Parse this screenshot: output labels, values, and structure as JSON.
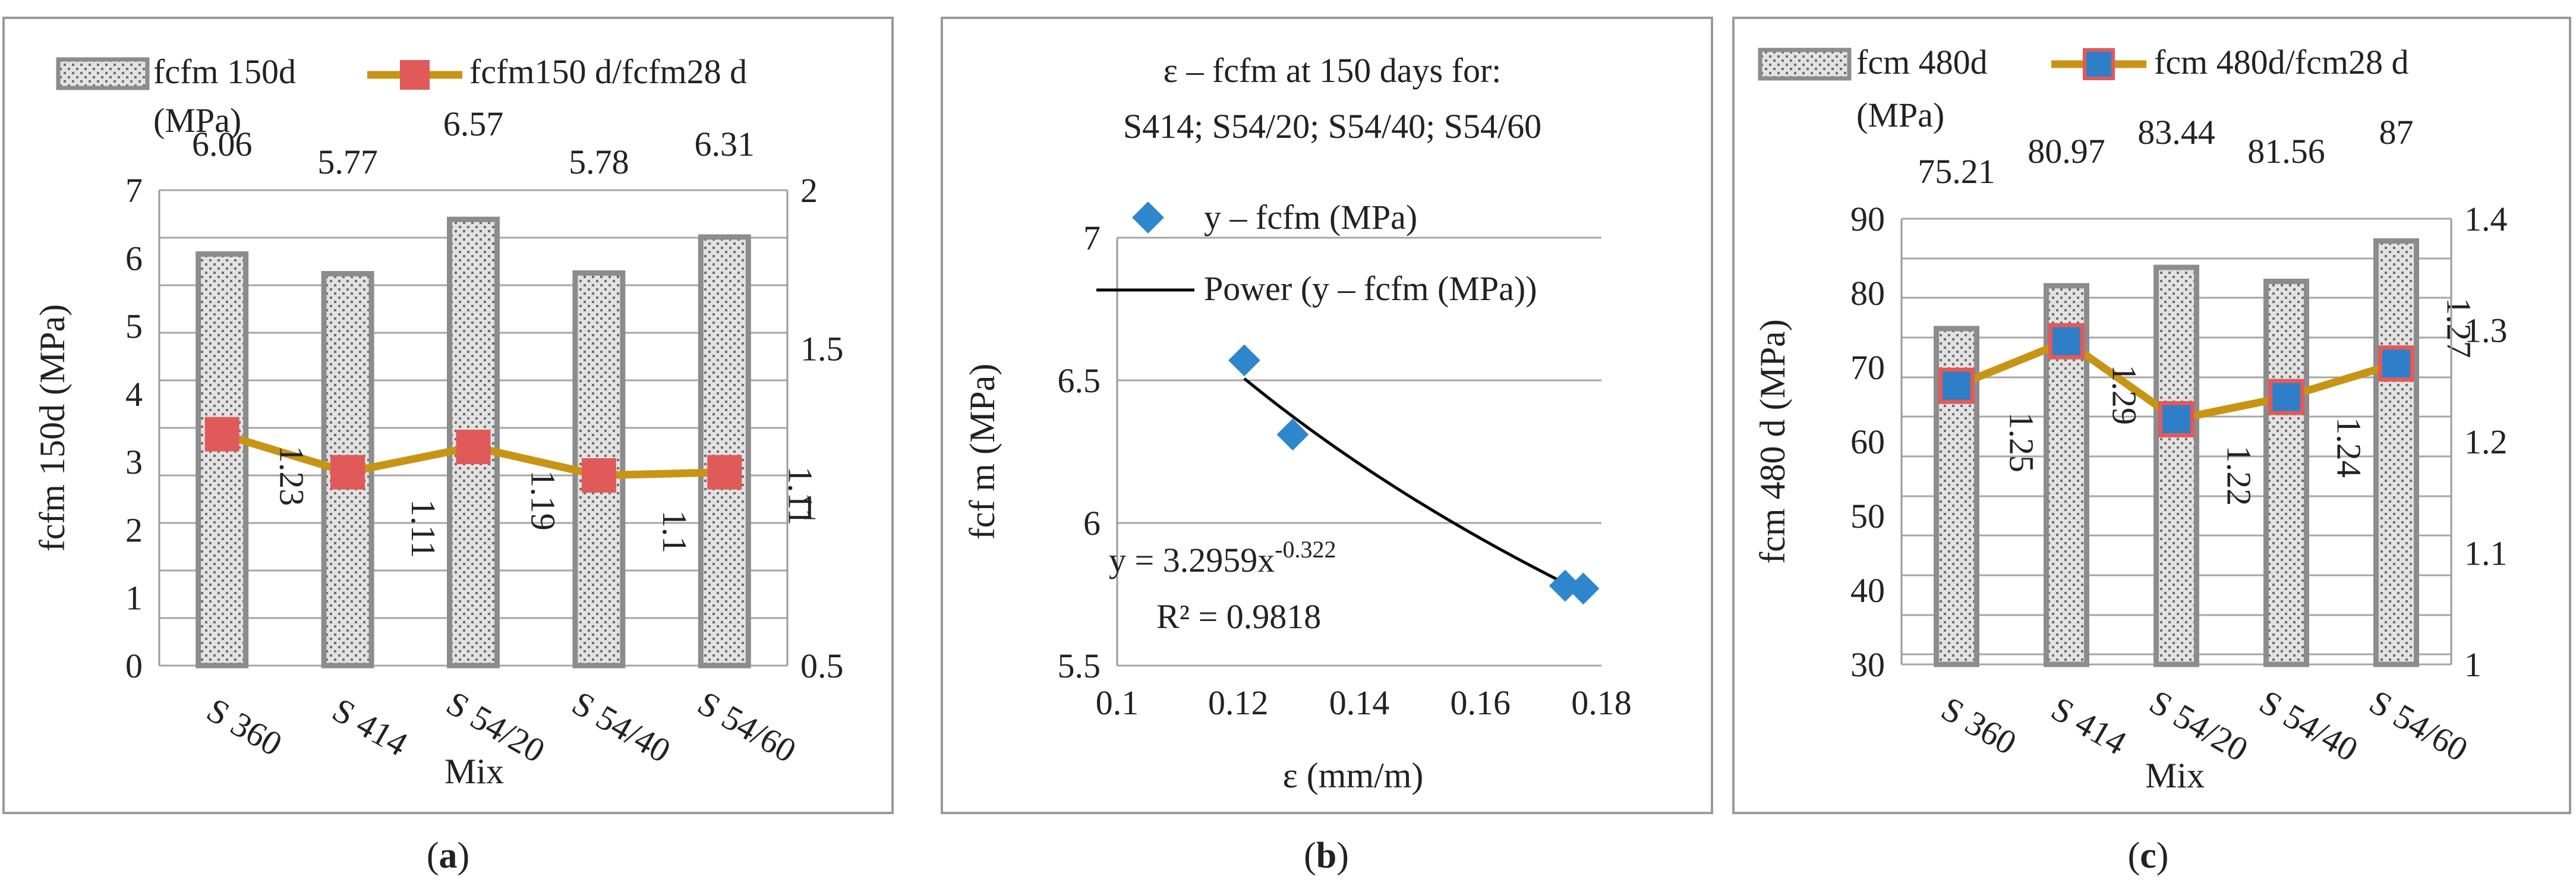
{
  "colors": {
    "panel_border": "#9a9a9a",
    "bar_outline": "#8c8c8c",
    "bar_pattern_bg": "#e2e2e2",
    "bar_pattern_dot": "#6e6e6e",
    "line": "#c89414",
    "marker_a": "#e05a5a",
    "marker_c": "#2f7fc8",
    "marker_c_edge": "#e05a5a",
    "scatter": "#2e86cc",
    "trend": "#000000",
    "grid": "#a6a6a6"
  },
  "chart_data": [
    {
      "type": "bar+line",
      "panel_label": "(a)",
      "panel_letter": "a",
      "categories": [
        "S 360",
        "S 414",
        "S 54/20",
        "S 54/40",
        "S 54/60"
      ],
      "bar_series": {
        "name": "fcfm 150d",
        "unit_line": "(MPa)",
        "values": [
          6.06,
          5.77,
          6.57,
          5.78,
          6.31
        ],
        "labels": [
          "6.06",
          "5.77",
          "6.57",
          "5.78",
          "6.31"
        ]
      },
      "line_series": {
        "name": "fcfm150 d/fcfm28 d",
        "values": [
          1.23,
          1.11,
          1.19,
          1.1,
          1.11
        ],
        "labels": [
          "1.23",
          "1.11",
          "1.19",
          "1.1",
          "1.11"
        ]
      },
      "xlabel": "Mix",
      "ylabel": "fcfm 150d (MPa)",
      "ylim": [
        0,
        7
      ],
      "yticks": [
        0,
        1,
        2,
        3,
        4,
        5,
        6,
        7
      ],
      "ytick_labels": [
        "0",
        "1",
        "2",
        "3",
        "4",
        "5",
        "6",
        "7"
      ],
      "y2lim": [
        0.5,
        2
      ],
      "y2ticks": [
        0.5,
        1,
        1.5,
        2
      ],
      "y2tick_labels": [
        "0.5",
        "1",
        "1.5",
        "2"
      ]
    },
    {
      "type": "scatter",
      "panel_label": "(b)",
      "panel_letter": "b",
      "title_lines": [
        "ε – fcfm at 150 days for:",
        "S414; S54/20; S54/40;  S54/60"
      ],
      "points": [
        {
          "x": 0.121,
          "y": 6.57
        },
        {
          "x": 0.129,
          "y": 6.31
        },
        {
          "x": 0.174,
          "y": 5.78
        },
        {
          "x": 0.177,
          "y": 5.77
        }
      ],
      "series_name": "y – fcfm (MPa)",
      "trendline": {
        "name": "Power (y – fcfm (MPa))",
        "a": 3.2959,
        "b": -0.322,
        "equation_main": "y = 3.2959x",
        "equation_exp": "-0.322",
        "r2_text": "R² = 0.9818"
      },
      "xlabel": "ε (mm/m)",
      "ylabel": "fcf m  (MPa)",
      "xlim": [
        0.1,
        0.18
      ],
      "xticks": [
        0.1,
        0.12,
        0.14,
        0.16,
        0.18
      ],
      "xtick_labels": [
        "0.1",
        "0.12",
        "0.14",
        "0.16",
        "0.18"
      ],
      "ylim": [
        5.5,
        7
      ],
      "yticks": [
        5.5,
        6,
        6.5,
        7
      ],
      "ytick_labels": [
        "5.5",
        "6",
        "6.5",
        "7"
      ]
    },
    {
      "type": "bar+line",
      "panel_label": "(c)",
      "panel_letter": "c",
      "categories": [
        "S 360",
        "S 414",
        "S 54/20",
        "S 54/40",
        "S 54/60"
      ],
      "bar_series": {
        "name": "fcm 480d",
        "unit_line": "(MPa)",
        "values": [
          75.21,
          80.97,
          83.44,
          81.56,
          87
        ],
        "labels": [
          "75.21",
          "80.97",
          "83.44",
          "81.56",
          "87"
        ]
      },
      "line_series": {
        "name": "fcm 480d/fcm28 d",
        "values": [
          1.25,
          1.29,
          1.22,
          1.24,
          1.27
        ],
        "labels": [
          "1.25",
          "1.29",
          "1.22",
          "1.24",
          "1.27"
        ]
      },
      "xlabel": "Mix",
      "ylabel": "fcm 480 d (MPa)",
      "ylim": [
        30,
        90
      ],
      "yticks": [
        30,
        40,
        50,
        60,
        70,
        80,
        90
      ],
      "ytick_labels": [
        "30",
        "40",
        "50",
        "60",
        "70",
        "80",
        "90"
      ],
      "y2lim": [
        1,
        1.4
      ],
      "y2ticks": [
        1,
        1.1,
        1.2,
        1.3,
        1.4
      ],
      "y2tick_labels": [
        "1",
        "1.1",
        "1.2",
        "1.3",
        "1.4"
      ]
    }
  ]
}
